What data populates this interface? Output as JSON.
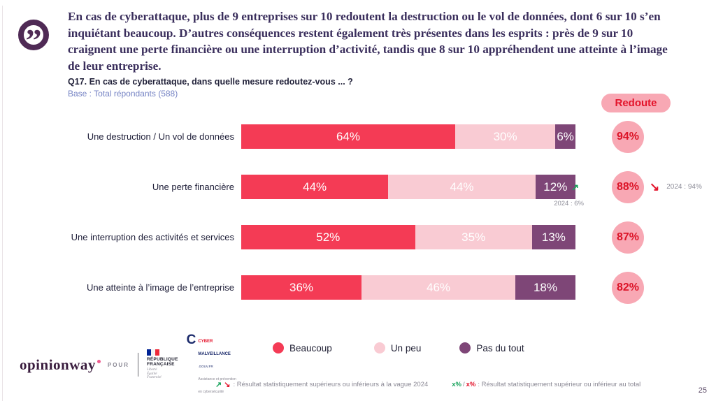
{
  "quote": {
    "text": "En cas de cyberattaque, plus de 9 entreprises sur 10 redoutent la destruction ou le vol de données, dont 6 sur 10 s’en inquiétant beaucoup. D’autres conséquences restent également très présentes dans les esprits : près de 9 sur 10 craignent une perte financière ou une interruption d’activité, tandis que 8 sur 10 appréhendent une atteinte à l’image de leur entreprise."
  },
  "question": "Q17. En cas de cyberattaque, dans quelle mesure redoutez-vous ... ?",
  "base": "Base : Total répondants (588)",
  "redoute_label": "Redoute",
  "chart_data": {
    "type": "bar",
    "stacked": true,
    "orientation": "horizontal",
    "xlim": [
      0,
      100
    ],
    "categories": [
      "Une destruction / Un vol de données",
      "Une perte financière",
      "Une interruption des activités et services",
      "Une atteinte à l’image de l’entreprise"
    ],
    "series": [
      {
        "name": "Beaucoup",
        "color": "#f43b55",
        "values": [
          64,
          44,
          52,
          36
        ]
      },
      {
        "name": "Un peu",
        "color": "#f9cbd3",
        "values": [
          30,
          44,
          35,
          46
        ]
      },
      {
        "name": "Pas du tout",
        "color": "#7e4677",
        "values": [
          6,
          12,
          13,
          18
        ]
      }
    ],
    "totals": {
      "label": "Redoute",
      "values": [
        94,
        88,
        87,
        82
      ]
    },
    "annotations": [
      {
        "row": 1,
        "segment_arrow": "↗",
        "segment_arrow_color": "#17a35b",
        "segment_note": "2024 : 6%",
        "total_arrow": "↘",
        "total_arrow_color": "#e3142b",
        "total_note": "2024 : 94%"
      }
    ],
    "legend_position": "bottom"
  },
  "footer": {
    "brand": "opinionway",
    "pour": "POUR",
    "rf_logo": {
      "line1": "RÉPUBLIQUE",
      "line2": "FRANÇAISE",
      "motto1": "Liberté",
      "motto2": "Égalité",
      "motto3": "Fraternité"
    },
    "cyber_logo": {
      "c": "C",
      "line1": "CYBER",
      "line2": "MALVEILLANCE",
      "line3": ".GOUV.FR",
      "sub1": "Assistance et prévention",
      "sub2": "en cybersécurité"
    },
    "legend1": {
      "arrow_up": "↗",
      "arrow_down": "↘",
      "text": ": Résultat statistiquement supérieurs ou inférieurs à la vague 2024"
    },
    "legend2": {
      "green": "x%",
      "sep": "/",
      "red": "x%",
      "text": ": Résultat statistiquement supérieur ou inférieur au total"
    }
  },
  "page_number": "25"
}
